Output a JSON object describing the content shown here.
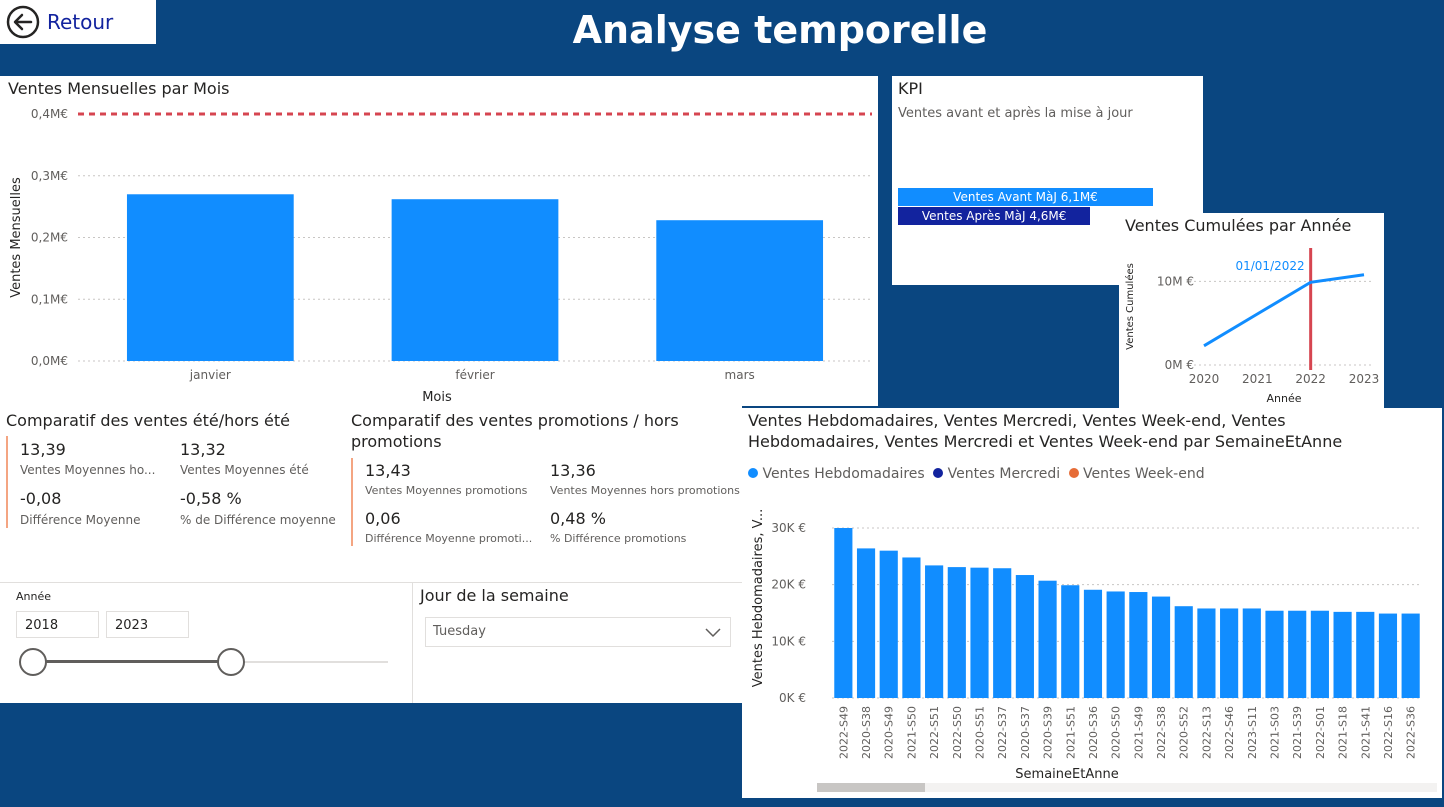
{
  "header": {
    "back_label": "Retour",
    "title": "Analyse temporelle"
  },
  "colors": {
    "bar": "#118dff",
    "dark_bar": "#12239e",
    "red": "#e66c37",
    "ref_line": "#d64550",
    "bg": "#0a4680"
  },
  "monthly": {
    "title": "Ventes Mensuelles par Mois",
    "xlabel": "Mois",
    "ylabel": "Ventes Mensuelles",
    "ticks": [
      "0,0M€",
      "0,1M€",
      "0,2M€",
      "0,3M€",
      "0,4M€"
    ]
  },
  "kpi": {
    "title": "KPI",
    "subtitle": "Ventes avant et après la mise à jour",
    "bar_before_label": "Ventes Avant MàJ 6,1M€",
    "bar_after_label": "Ventes Après MàJ 4,6M€"
  },
  "cumul": {
    "title": "Ventes Cumulées par Année",
    "xlabel": "Année",
    "ylabel": "Ventes Cumulées",
    "ticks": [
      "0M €",
      "10M €"
    ],
    "ref_label": "01/01/2022"
  },
  "ete": {
    "title": "Comparatif des ventes été/hors été",
    "items": [
      {
        "value": "13,39",
        "label": "Ventes Moyennes ho..."
      },
      {
        "value": "13,32",
        "label": "Ventes Moyennes été"
      },
      {
        "value": "-0,08",
        "label": "Différence Moyenne"
      },
      {
        "value": "-0,58 %",
        "label": "% de Différence moyenne"
      }
    ]
  },
  "promo": {
    "title_line1": "Comparatif des ventes promotions / hors",
    "title_line2": "promotions",
    "items": [
      {
        "value": "13,43",
        "label": "Ventes Moyennes promotions"
      },
      {
        "value": "13,36",
        "label": "Ventes Moyennes hors promotions"
      },
      {
        "value": "0,06",
        "label": "Différence Moyenne promoti..."
      },
      {
        "value": "0,48 %",
        "label": "% Différence promotions"
      }
    ]
  },
  "slicer_year": {
    "label": "Année",
    "from": "2018",
    "to": "2023"
  },
  "slicer_day": {
    "label": "Jour de la semaine",
    "selected": "Tuesday"
  },
  "weekly": {
    "title_line1": "Ventes Hebdomadaires, Ventes Mercredi, Ventes Week-end, Ventes",
    "title_line2": "Hebdomadaires, Ventes Mercredi et Ventes Week-end par SemaineEtAnne",
    "legend": [
      "Ventes Hebdomadaires",
      "Ventes Mercredi",
      "Ventes Week-end"
    ],
    "xlabel": "SemaineEtAnne",
    "ylabel": "Ventes Hebdomadaires, V...",
    "ticks": [
      "0K €",
      "10K €",
      "20K €",
      "30K €"
    ]
  },
  "chart_data": [
    {
      "type": "bar",
      "title": "Ventes Mensuelles par Mois",
      "categories": [
        "janvier",
        "février",
        "mars"
      ],
      "values": [
        0.27,
        0.262,
        0.228
      ],
      "xlabel": "Mois",
      "ylabel": "Ventes Mensuelles",
      "ylim": [
        0,
        0.4
      ],
      "reference_line": 0.4,
      "unit": "M€"
    },
    {
      "type": "bar",
      "title": "KPI",
      "categories": [
        "Ventes Avant MàJ",
        "Ventes Après MàJ"
      ],
      "values": [
        6.1,
        4.6
      ],
      "unit": "M€"
    },
    {
      "type": "line",
      "title": "Ventes Cumulées par Année",
      "x": [
        2020,
        2021,
        2022,
        2023
      ],
      "values": [
        2.3,
        6.1,
        9.9,
        10.8
      ],
      "xlabel": "Année",
      "ylabel": "Ventes Cumulées",
      "ylim": [
        0,
        14
      ],
      "reference_line_x": 2022,
      "reference_label": "01/01/2022",
      "unit": "M €"
    },
    {
      "type": "bar",
      "title": "Ventes Hebdomadaires, Ventes Mercredi, Ventes Week-end, Ventes Hebdomadaires, Ventes Mercredi et Ventes Week-end par SemaineEtAnne",
      "categories": [
        "2022-S49",
        "2020-S38",
        "2020-S49",
        "2021-S50",
        "2022-S51",
        "2022-S50",
        "2020-S51",
        "2022-S37",
        "2020-S37",
        "2020-S39",
        "2021-S51",
        "2020-S36",
        "2020-S50",
        "2021-S49",
        "2022-S38",
        "2020-S52",
        "2022-S13",
        "2022-S46",
        "2023-S11",
        "2021-S03",
        "2021-S39",
        "2022-S01",
        "2021-S18",
        "2021-S41",
        "2022-S16",
        "2022-S36"
      ],
      "values": [
        30.0,
        26.4,
        26.0,
        24.8,
        23.4,
        23.1,
        23.0,
        22.9,
        21.7,
        20.7,
        19.9,
        19.1,
        18.8,
        18.7,
        17.9,
        16.2,
        15.8,
        15.8,
        15.8,
        15.4,
        15.4,
        15.4,
        15.2,
        15.2,
        14.9,
        14.9
      ],
      "xlabel": "SemaineEtAnne",
      "ylabel": "Ventes Hebdomadaires, V...",
      "ylim": [
        0,
        30
      ],
      "unit": "K €",
      "legend": "top-left"
    }
  ]
}
